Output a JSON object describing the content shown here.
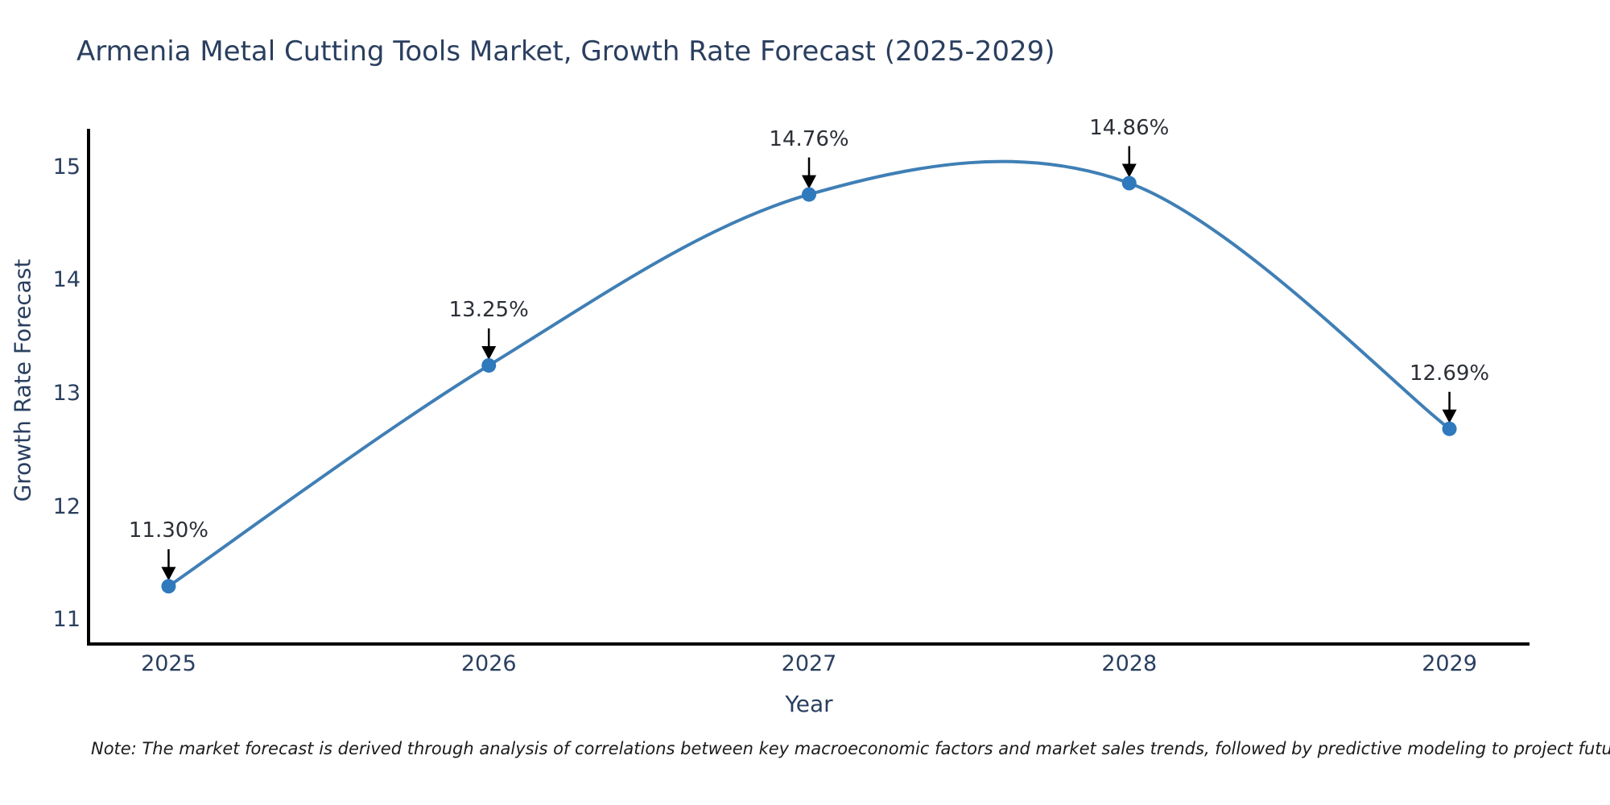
{
  "title": "Armenia Metal Cutting Tools Market, Growth Rate Forecast (2025-2029)",
  "note": "Note: The market forecast is derived through analysis of correlations between key macroeconomic factors and market sales trends, followed by predictive modeling to project future sales",
  "chart_data": {
    "type": "line",
    "title": "Armenia Metal Cutting Tools Market, Growth Rate Forecast (2025-2029)",
    "xlabel": "Year",
    "ylabel": "Growth Rate Forecast",
    "x": [
      2025,
      2026,
      2027,
      2028,
      2029
    ],
    "y": [
      11.3,
      13.25,
      14.76,
      14.86,
      12.69
    ],
    "point_labels": [
      "11.30%",
      "13.25%",
      "14.76%",
      "14.86%",
      "12.69%"
    ],
    "x_tick_labels": [
      "2025",
      "2026",
      "2027",
      "2028",
      "2029"
    ],
    "y_tick_values": [
      11,
      12,
      13,
      14,
      15
    ],
    "y_tick_labels": [
      "11",
      "12",
      "13",
      "14",
      "15"
    ],
    "xlim": [
      2024.75,
      2029.25
    ],
    "ylim": [
      10.79,
      15.34
    ],
    "line_shape": "spline",
    "grid": false,
    "legend": "none",
    "colors": {
      "line": "#3f7fb5",
      "marker": "#2f79bd",
      "axis": "#000000",
      "title_text": "#2a3f5f",
      "tick_text": "#2a3f5f",
      "annotation_text": "#2b2f36",
      "arrow": "#000000",
      "background": "#ffffff"
    }
  }
}
